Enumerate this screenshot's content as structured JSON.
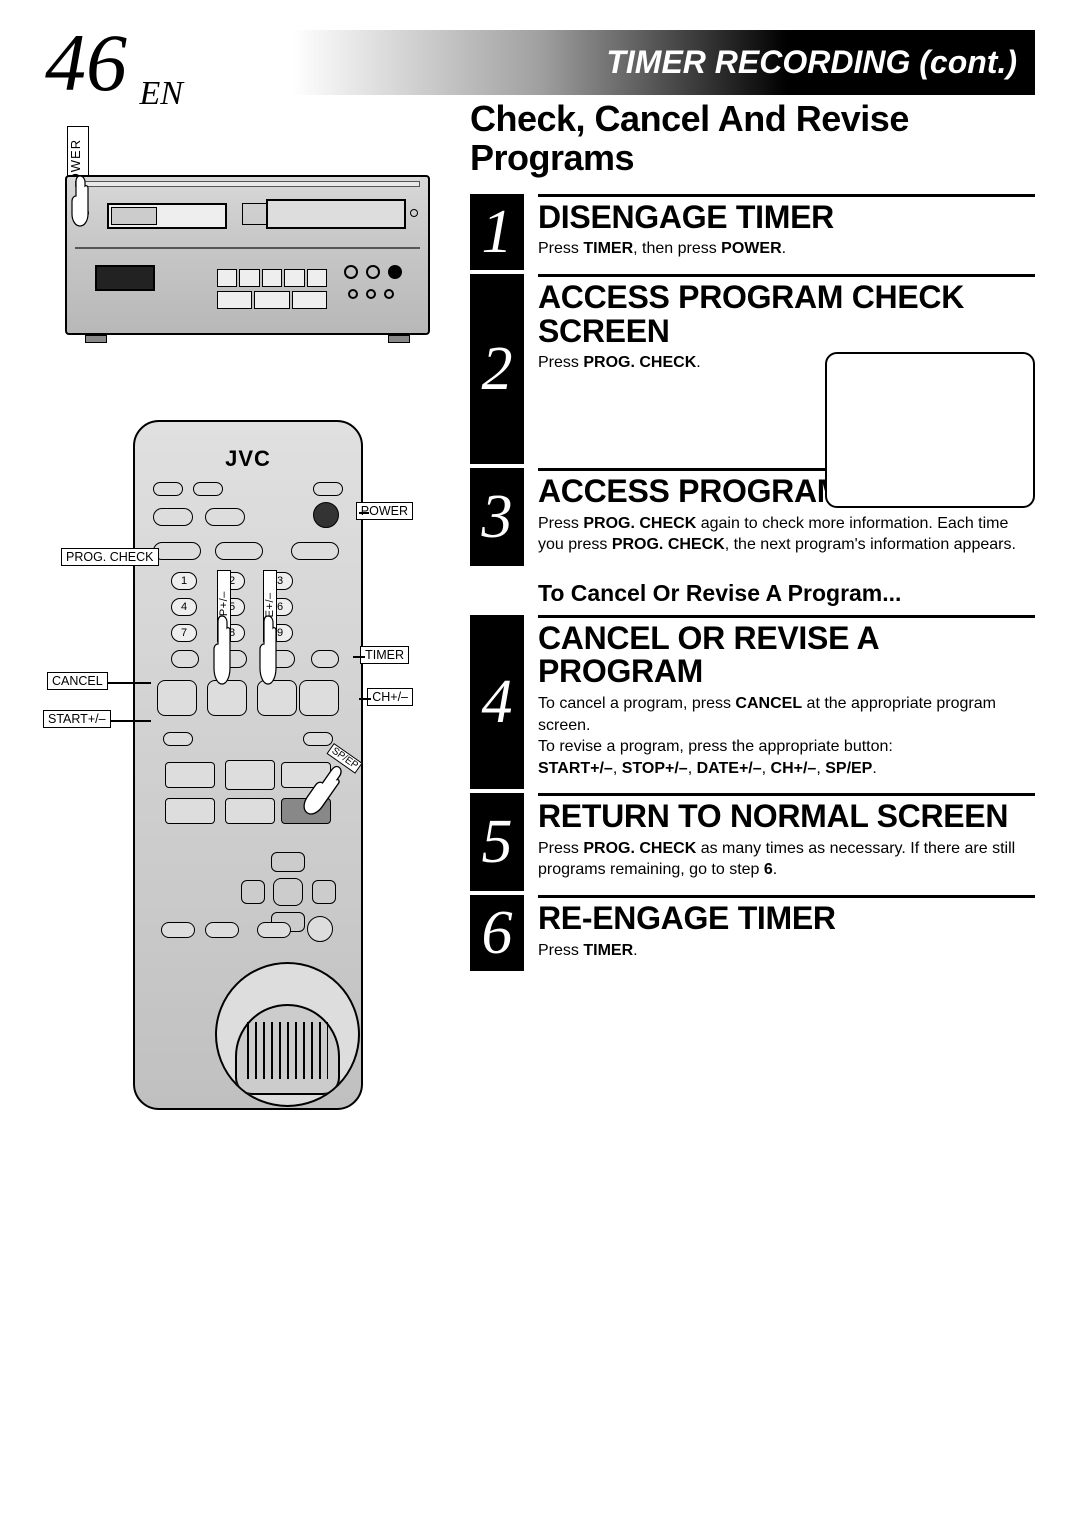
{
  "header": {
    "page_number": "46",
    "lang": "EN",
    "title": "TIMER RECORDING (cont.)"
  },
  "section_heading": "Check, Cancel And Revise Programs",
  "vcr": {
    "power_label": "POWER"
  },
  "remote": {
    "brand": "JVC",
    "labels": {
      "power": "POWER",
      "prog_check": "PROG. CHECK",
      "timer": "TIMER",
      "cancel": "CANCEL",
      "ch": "CH+/–",
      "start": "START+/–",
      "stop_v": "STOP+/–",
      "date_v": "DATE+/–",
      "spep": "SP/EP"
    },
    "numpad": [
      [
        "1",
        "2",
        "3"
      ],
      [
        "4",
        "5",
        "6"
      ],
      [
        "7",
        "8",
        "9"
      ]
    ]
  },
  "sub_heading": "To Cancel Or Revise A Program...",
  "steps": [
    {
      "n": "1",
      "title": "DISENGAGE TIMER",
      "body_html": "Press <b>TIMER</b>, then press <b>POWER</b>."
    },
    {
      "n": "2",
      "title": "ACCESS PROGRAM CHECK SCREEN",
      "body_html": "Press <b>PROG. CHECK</b>."
    },
    {
      "n": "3",
      "title": "ACCESS PROGRAM SCREEN",
      "body_html": "Press <b>PROG. CHECK</b> again to check more information. Each time you press <b>PROG. CHECK</b>, the next program's information appears."
    },
    {
      "n": "4",
      "title": "CANCEL OR REVISE A PROGRAM",
      "body_html": "To cancel a program, press <b>CANCEL</b> at the appropriate program screen.<br>To revise a program, press the appropriate button:<br><b>START+/–</b>, <b>STOP+/–</b>, <b>DATE+/–</b>, <b>CH+/–</b>, <b>SP/EP</b>."
    },
    {
      "n": "5",
      "title": "RETURN TO NORMAL SCREEN",
      "body_html": "Press <b>PROG. CHECK</b> as many times as necessary. If there are still programs remaining, go to step <b>6</b>."
    },
    {
      "n": "6",
      "title": "RE-ENGAGE TIMER",
      "body_html": "Press <b>TIMER</b>."
    }
  ],
  "colors": {
    "black": "#000000",
    "white": "#ffffff",
    "header_grad_mid": "#a0a0a0"
  }
}
